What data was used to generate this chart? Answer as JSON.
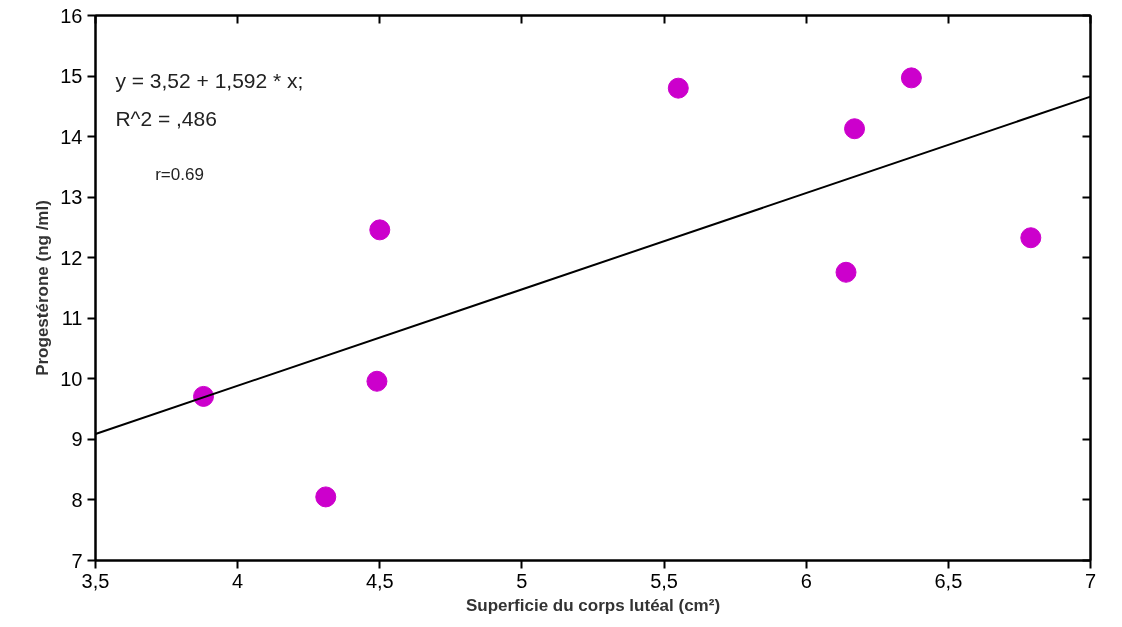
{
  "chart_data": {
    "type": "scatter",
    "xlabel": "Superficie du corps lutéal (cm²)",
    "ylabel": "Progestérone (ng /ml)",
    "annotations": [
      "y = 3,52 + 1,592 * x;",
      "R^2 = ,486",
      "r=0.69"
    ],
    "xlim": [
      3.5,
      7
    ],
    "ylim": [
      7,
      16
    ],
    "xticks": [
      {
        "value": 3.5,
        "label": "3,5"
      },
      4,
      {
        "value": 4.5,
        "label": "4,5"
      },
      5,
      {
        "value": 5.5,
        "label": "5,5"
      },
      6,
      {
        "value": 6.5,
        "label": "6,5"
      },
      7
    ],
    "yticks": [
      7,
      8,
      9,
      10,
      11,
      12,
      13,
      14,
      15,
      16
    ],
    "grid": false,
    "series": [
      {
        "marker": "circle",
        "color": "#cc00cc",
        "x": [
          3.88,
          4.31,
          4.49,
          4.5,
          5.55,
          6.14,
          6.17,
          6.37,
          6.79
        ],
        "values": [
          9.71,
          8.05,
          9.96,
          12.46,
          14.8,
          11.76,
          14.13,
          14.97,
          12.33
        ]
      },
      {
        "type": "line",
        "marker": "none",
        "color": "#000000",
        "x": [
          3.5,
          7
        ],
        "values": [
          9.09,
          14.66
        ]
      }
    ]
  }
}
